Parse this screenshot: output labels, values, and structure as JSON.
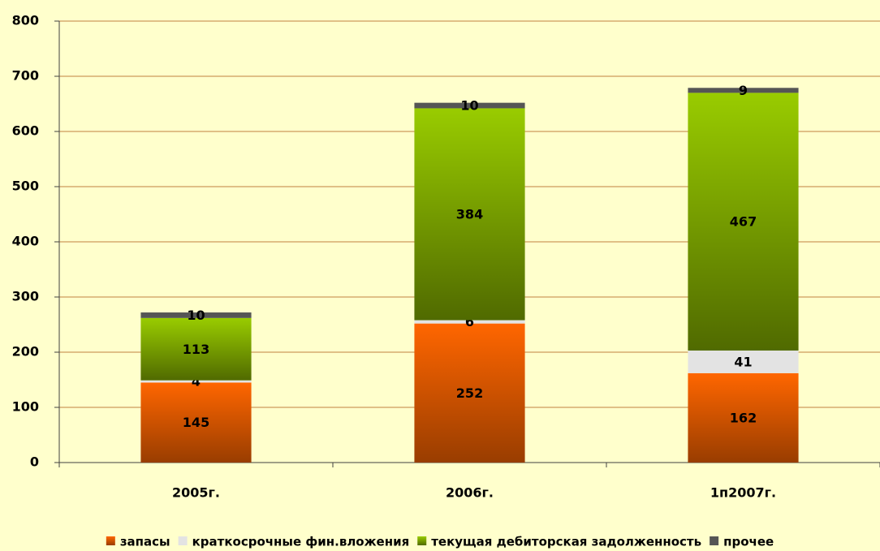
{
  "chart_data": {
    "type": "stacked-bar",
    "categories": [
      "2005г.",
      "2006г.",
      "1п2007г."
    ],
    "series": [
      {
        "name": "запасы",
        "color": "#ff6600",
        "values": [
          145,
          252,
          162
        ]
      },
      {
        "name": "краткосрочные фин.вложения",
        "color": "#e3e3e3",
        "values": [
          4,
          6,
          41
        ]
      },
      {
        "name": "текущая дебиторская задолженность",
        "color": "#99cc00",
        "values": [
          113,
          384,
          467
        ]
      },
      {
        "name": "прочее",
        "color": "#555555",
        "values": [
          10,
          10,
          9
        ]
      }
    ],
    "ylim": [
      0,
      800
    ],
    "yticks": [
      0,
      100,
      200,
      300,
      400,
      500,
      600,
      700,
      800
    ],
    "grid": true,
    "legend": "bottom"
  }
}
